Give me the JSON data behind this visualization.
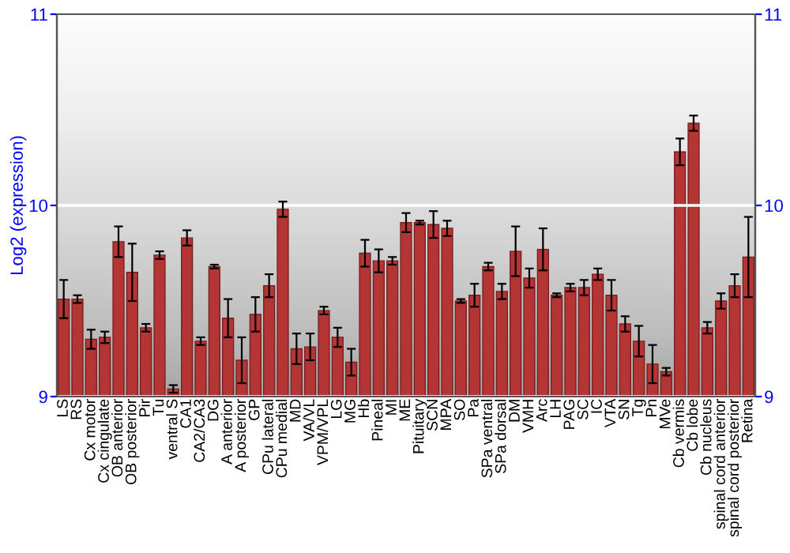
{
  "chart_data": {
    "type": "bar",
    "ylabel": "Log2 (expression)",
    "categories": [
      "LS",
      "RS",
      "Cx motor",
      "Cx cingulate",
      "OB anterior",
      "OB posterior",
      "Pir",
      "Tu",
      "ventral S",
      "CA1",
      "CA2/CA3",
      "DG",
      "A anterior",
      "A posterior",
      "GP",
      "CPu lateral",
      "CPu medial",
      "MD",
      "VA/VL",
      "VPM/VPL",
      "LG",
      "MG",
      "Hb",
      "Pineal",
      "MI",
      "ME",
      "Pituitary",
      "SCN",
      "MPA",
      "SO",
      "Pa",
      "SPa ventral",
      "SPa dorsal",
      "DM",
      "VMH",
      "Arc",
      "LH",
      "PAG",
      "SC",
      "IC",
      "VTA",
      "SN",
      "Tg",
      "Pn",
      "MVe",
      "Cb vermis",
      "Cb lobe",
      "Cb nucleus",
      "spinal cord anterior",
      "spinal cord posterior",
      "Retina"
    ],
    "values": [
      9.51,
      9.51,
      9.3,
      9.31,
      9.81,
      9.65,
      9.36,
      9.74,
      9.04,
      9.83,
      9.29,
      9.68,
      9.41,
      9.19,
      9.43,
      9.58,
      9.98,
      9.25,
      9.26,
      9.45,
      9.31,
      9.18,
      9.75,
      9.71,
      9.71,
      9.91,
      9.91,
      9.9,
      9.88,
      9.5,
      9.53,
      9.68,
      9.55,
      9.76,
      9.62,
      9.77,
      9.53,
      9.57,
      9.57,
      9.64,
      9.53,
      9.38,
      9.29,
      9.17,
      9.13,
      10.28,
      10.43,
      9.36,
      9.5,
      9.58,
      9.73
    ],
    "errors": [
      0.1,
      0.02,
      0.05,
      0.03,
      0.08,
      0.15,
      0.02,
      0.02,
      0.02,
      0.04,
      0.02,
      0.01,
      0.1,
      0.12,
      0.09,
      0.06,
      0.04,
      0.08,
      0.07,
      0.02,
      0.05,
      0.07,
      0.07,
      0.06,
      0.02,
      0.05,
      0.01,
      0.07,
      0.04,
      0.01,
      0.06,
      0.02,
      0.04,
      0.13,
      0.05,
      0.11,
      0.01,
      0.02,
      0.04,
      0.03,
      0.08,
      0.04,
      0.08,
      0.1,
      0.02,
      0.07,
      0.04,
      0.03,
      0.04,
      0.06,
      0.21
    ],
    "color": "#b53535",
    "ylim": [
      9,
      11
    ],
    "yticks": [
      9,
      10,
      11
    ],
    "y2lim": [
      9,
      11
    ],
    "y2ticks": [
      9,
      10,
      11
    ],
    "grid": "y"
  }
}
